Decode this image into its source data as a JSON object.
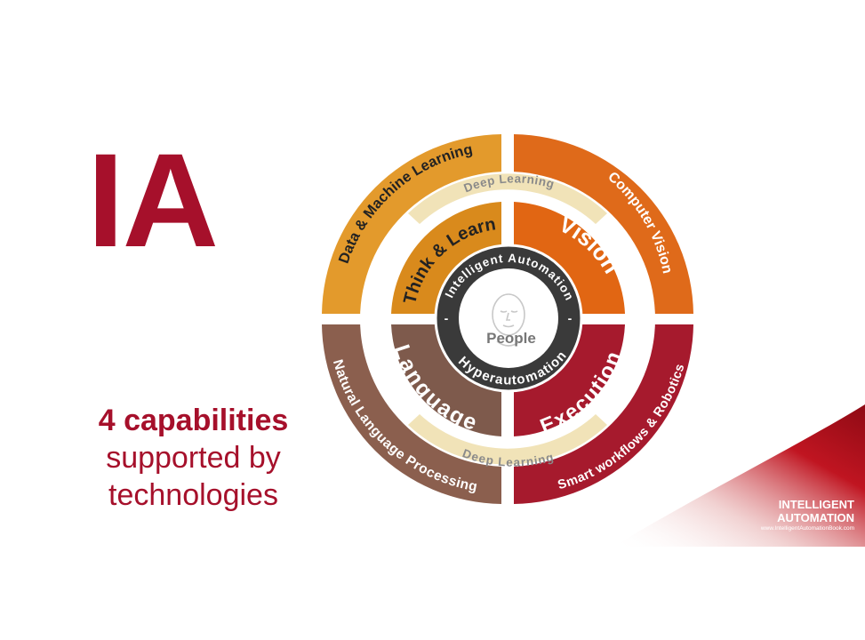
{
  "slide": {
    "title": "IA",
    "subtitle": {
      "line1": "4 capabilities",
      "line2": "supported by",
      "line3": "technologies"
    }
  },
  "diagram": {
    "center_label": "People",
    "ring_text_top": "Intelligent Automation",
    "ring_text_bottom": "Hyperautomation",
    "capabilities": {
      "think_learn": "Think & Learn",
      "vision": "Vision",
      "language": "Language",
      "execution": "Execution"
    },
    "technologies": {
      "data_ml": "Data & Machine Learning",
      "computer_vision": "Computer Vision",
      "nlp": "Natural Language Processing",
      "smart_workflows": "Smart workflows & Robotics"
    },
    "deep_learning_top": "Deep Learning",
    "deep_learning_bottom": "Deep Learning",
    "colors": {
      "title": "#a6102b",
      "quad_tl_outer": "#e39a2c",
      "quad_tl_inner": "#d98a1c",
      "quad_tr_outer": "#df6a1a",
      "quad_tr_inner": "#e16613",
      "quad_bl_outer": "#8b5f4e",
      "quad_bl_inner": "#7e5a4c",
      "quad_br_outer": "#a61a2d",
      "quad_br_inner": "#a61a2d",
      "ring_dark": "#3a3a3a",
      "deep_learning_band": "#f1e3b8"
    }
  },
  "branding": {
    "line1": "INTELLIGENT",
    "line2": "AUTOMATION",
    "url": "www.IntelligentAutomationBook.com"
  }
}
